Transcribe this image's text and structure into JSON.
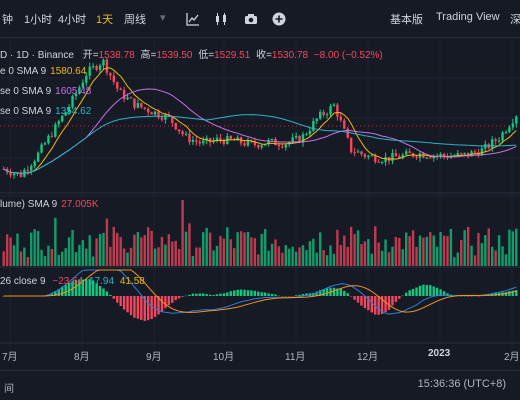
{
  "toolbar": {
    "items": [
      "钟",
      "1小时",
      "4小时",
      "1天",
      "周线"
    ],
    "active_index": 3,
    "basic_label": "基本版",
    "tradingview_label": "Trading View",
    "depth_label": "深"
  },
  "icons": {
    "indicators": "indicators-icon",
    "candle_style": "candlestick-icon",
    "screenshot": "camera-icon",
    "add": "plus-circle-icon"
  },
  "legend": {
    "symbol_row": "D · 1D · Binance",
    "open_label": "开=",
    "open_value": "1538.78",
    "high_label": "高=",
    "high_value": "1539.50",
    "low_label": "低=",
    "low_value": "1529.51",
    "close_label": "收=",
    "close_value": "1530.78",
    "change_value": "−8.00 (−0.52%)",
    "ma1_label": "e 0 SMA 9",
    "ma1_value": "1580.64",
    "ma2_label": "se 0 SMA 9",
    "ma2_value": "1605.48",
    "ma3_label": "se 0 SMA 9",
    "ma3_value": "1354.62",
    "volume_label": "lume) SMA 9",
    "volume_value": "27.005K",
    "macd_label": "26 close 9",
    "macd_v1": "−23.64",
    "macd_v2": "17.94",
    "macd_v3": "41.58"
  },
  "time_axis": [
    "7月",
    "8月",
    "9月",
    "10月",
    "11月",
    "12月",
    "2023",
    "2月"
  ],
  "status": {
    "clock": "15:36:36 (UTC+8)",
    "left_fragment": "间"
  },
  "colors": {
    "background": "#161a25",
    "up": "#0ecb81",
    "down": "#f6465d",
    "ma1": "#f0b90b",
    "ma2": "#c770e8",
    "ma3": "#2ab5c9",
    "accent": "#f0b90b"
  },
  "chart_data": {
    "type": "candlestick",
    "time_labels": [
      "7月",
      "8月",
      "9月",
      "10月",
      "11月",
      "12月",
      "2023",
      "2月"
    ],
    "close_trend": [
      1100,
      1050,
      1200,
      1400,
      1600,
      1850,
      1950,
      1700,
      1600,
      1550,
      1500,
      1350,
      1300,
      1330,
      1320,
      1290,
      1310,
      1300,
      1340,
      1500,
      1600,
      1250,
      1200,
      1180,
      1200,
      1220,
      1210,
      1200,
      1210,
      1250,
      1350,
      1530
    ],
    "last": {
      "open": 1538.78,
      "high": 1539.5,
      "low": 1529.51,
      "close": 1530.78,
      "change": -8.0,
      "change_pct": -0.52
    },
    "ma_values": {
      "ma1": 1580.64,
      "ma2": 1605.48,
      "ma3": 1354.62
    },
    "volume_sma": "27.005K",
    "macd": {
      "macd": -23.64,
      "signal": 17.94,
      "hist": 41.58
    }
  }
}
